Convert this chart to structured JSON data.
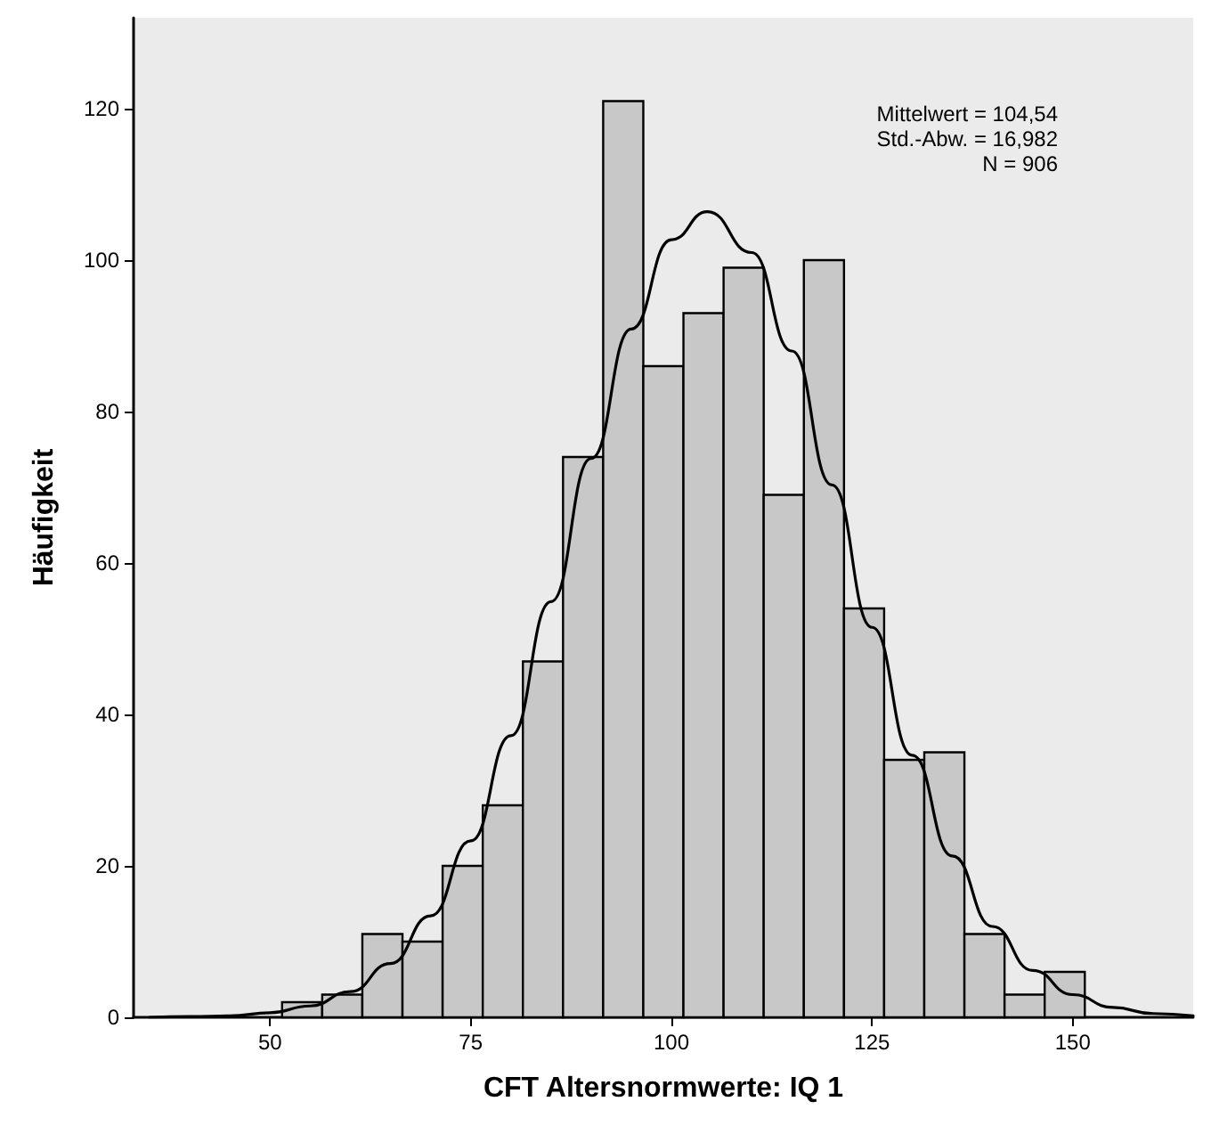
{
  "chart_data": {
    "type": "histogram",
    "xlabel": "CFT Altersnormwerte: IQ 1",
    "ylabel": "Häufigkeit",
    "annotations": [
      "Mittelwert = 104,54",
      "Std.-Abw. = 16,982",
      "N = 906"
    ],
    "bins": [
      51.5,
      56.5,
      61.5,
      66.5,
      71.5,
      76.5,
      81.5,
      86.5,
      91.5,
      96.5,
      101.5,
      106.5,
      111.5,
      116.5,
      121.5,
      126.5,
      131.5,
      136.5,
      141.5,
      146.5,
      151.5
    ],
    "values": [
      2,
      3,
      11,
      10,
      20,
      28,
      47,
      74,
      121,
      86,
      93,
      99,
      69,
      100,
      54,
      34,
      35,
      11,
      3,
      6
    ],
    "color": "#c8c8c8",
    "series": [
      {
        "type": "line",
        "color": "#000000",
        "x": [
          35,
          40,
          45,
          50,
          55,
          60,
          65,
          70,
          75,
          80,
          85,
          90,
          95,
          100,
          104.5,
          110,
          115,
          120,
          125,
          130,
          135,
          140,
          145,
          150,
          155,
          160,
          165
        ],
        "values": [
          0,
          0.1,
          0.2,
          0.6,
          1.5,
          3.4,
          7.1,
          13.4,
          23.3,
          37.2,
          54.9,
          73.8,
          90.9,
          102.7,
          106.4,
          101,
          88,
          70.3,
          51.5,
          34.6,
          21.3,
          12,
          6.2,
          3,
          1.3,
          0.5,
          0.2
        ]
      }
    ],
    "xlim": [
      33,
      165
    ],
    "xticks": [
      50,
      75,
      100,
      125,
      150
    ],
    "ylim": [
      0,
      132
    ],
    "yticks": [
      0,
      20,
      40,
      60,
      80,
      100,
      120
    ]
  }
}
